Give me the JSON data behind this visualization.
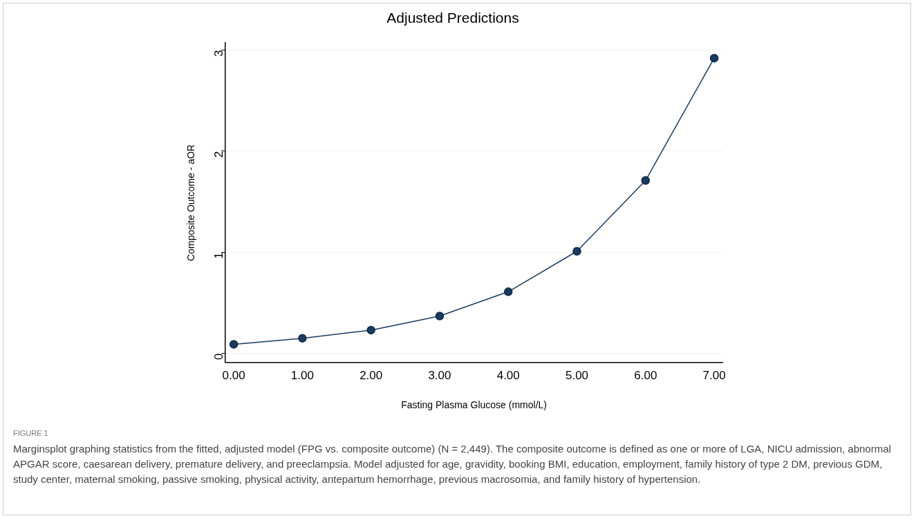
{
  "chart_data": {
    "type": "line",
    "title": "Adjusted Predictions",
    "xlabel": "Fasting Plasma Glucose (mmol/L)",
    "ylabel": "Composite Outcome - aOR",
    "x": [
      0,
      1,
      2,
      3,
      4,
      5,
      6,
      7
    ],
    "series": [
      {
        "color": "#1a3a5e",
        "values": [
          0.09,
          0.15,
          0.23,
          0.37,
          0.61,
          1.01,
          1.71,
          2.92
        ]
      }
    ],
    "xlim": [
      -0.12,
      7.12
    ],
    "ylim": [
      -0.09,
      3.07
    ],
    "xticks": [
      {
        "value": 0,
        "label": "0.00"
      },
      {
        "value": 1,
        "label": "1.00"
      },
      {
        "value": 2,
        "label": "2.00"
      },
      {
        "value": 3,
        "label": "3.00"
      },
      {
        "value": 4,
        "label": "4.00"
      },
      {
        "value": 5,
        "label": "5.00"
      },
      {
        "value": 6,
        "label": "6.00"
      },
      {
        "value": 7,
        "label": "7.00"
      }
    ],
    "yticks": [
      0,
      1,
      2,
      3
    ],
    "grid": "y",
    "marker": "circle",
    "legend": false,
    "annotations": [
      "FIGURE 1",
      "Marginsplot graphing statistics from the fitted, adjusted model (FPG vs. composite outcome) (N = 2,449). The composite outcome is defined as one or more of LGA, NICU admission, abnormal APGAR score, caesarean delivery, premature delivery, and preeclampsia. Model adjusted for age, gravidity, booking BMI, education, employment, family history of type 2 DM, previous GDM, study center, maternal smoking, passive smoking, physical activity, antepartum hemorrhage, previous macrosomia, and family history of hypertension."
    ]
  }
}
